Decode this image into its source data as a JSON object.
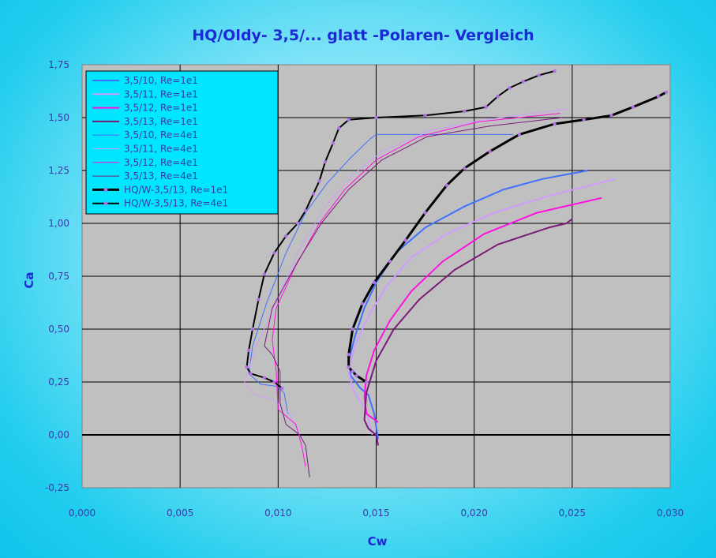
{
  "chart_data": {
    "type": "line",
    "title": "HQ/Oldy- 3,5/... glatt -Polaren- Vergleich",
    "xlabel": "Cw",
    "ylabel": "Ca",
    "xlim": [
      0.0,
      0.03
    ],
    "ylim": [
      -0.25,
      1.75
    ],
    "x_ticks": [
      "0,000",
      "0,005",
      "0,010",
      "0,015",
      "0,020",
      "0,025",
      "0,030"
    ],
    "x_tick_values": [
      0.0,
      0.005,
      0.01,
      0.015,
      0.02,
      0.025,
      0.03
    ],
    "y_ticks": [
      "1,75",
      "1,50",
      "1,25",
      "1,00",
      "0,75",
      "0,50",
      "0,25",
      "0,00",
      "-0,25"
    ],
    "y_tick_values": [
      1.75,
      1.5,
      1.25,
      1.0,
      0.75,
      0.5,
      0.25,
      0.0,
      -0.25
    ],
    "grid": true,
    "legend_position": "top-left",
    "colors": {
      "plot_bg": "#c0c0c0",
      "legend_bg": "#00e6ff",
      "grid": "#000000"
    },
    "series": [
      {
        "name": "3,5/10, Re=1e1",
        "color": "#4070ff",
        "width": 2,
        "marker": false,
        "points": [
          [
            0.0151,
            -0.02
          ],
          [
            0.0149,
            0.1
          ],
          [
            0.0146,
            0.19
          ],
          [
            0.0142,
            0.22
          ],
          [
            0.0137,
            0.28
          ],
          [
            0.0136,
            0.35
          ],
          [
            0.0139,
            0.46
          ],
          [
            0.0144,
            0.6
          ],
          [
            0.015,
            0.72
          ],
          [
            0.016,
            0.86
          ],
          [
            0.0175,
            0.98
          ],
          [
            0.0195,
            1.08
          ],
          [
            0.0215,
            1.16
          ],
          [
            0.0235,
            1.21
          ],
          [
            0.0258,
            1.25
          ]
        ]
      },
      {
        "name": "3,5/11, Re=1e1",
        "color": "#d09cff",
        "width": 2,
        "marker": false,
        "points": [
          [
            0.0148,
            0.0
          ],
          [
            0.0145,
            0.12
          ],
          [
            0.0141,
            0.17
          ],
          [
            0.0138,
            0.22
          ],
          [
            0.0136,
            0.3
          ],
          [
            0.0139,
            0.42
          ],
          [
            0.0146,
            0.56
          ],
          [
            0.0155,
            0.7
          ],
          [
            0.0168,
            0.84
          ],
          [
            0.0186,
            0.95
          ],
          [
            0.021,
            1.05
          ],
          [
            0.0238,
            1.13
          ],
          [
            0.0272,
            1.21
          ]
        ]
      },
      {
        "name": "3,5/12, Re=1e1",
        "color": "#ff10e0",
        "width": 2,
        "marker": false,
        "points": [
          [
            0.0151,
            0.06
          ],
          [
            0.0145,
            0.1
          ],
          [
            0.0144,
            0.18
          ],
          [
            0.0145,
            0.28
          ],
          [
            0.0149,
            0.4
          ],
          [
            0.0157,
            0.54
          ],
          [
            0.0168,
            0.68
          ],
          [
            0.0184,
            0.82
          ],
          [
            0.0205,
            0.95
          ],
          [
            0.0232,
            1.05
          ],
          [
            0.0265,
            1.12
          ]
        ]
      },
      {
        "name": "3,5/13, Re=1e1",
        "color": "#7a1a78",
        "width": 2,
        "marker": false,
        "points": [
          [
            0.0151,
            -0.05
          ],
          [
            0.015,
            0.0
          ],
          [
            0.0146,
            0.03
          ],
          [
            0.0144,
            0.07
          ],
          [
            0.0145,
            0.2
          ],
          [
            0.015,
            0.35
          ],
          [
            0.0159,
            0.5
          ],
          [
            0.0172,
            0.64
          ],
          [
            0.019,
            0.78
          ],
          [
            0.0212,
            0.9
          ],
          [
            0.0238,
            0.98
          ],
          [
            0.0247,
            1.0
          ],
          [
            0.025,
            1.02
          ]
        ]
      },
      {
        "name": "3,5/10, Re=4e1",
        "color": "#4070ff",
        "width": 1,
        "marker": false,
        "points": [
          [
            0.0105,
            0.1
          ],
          [
            0.0103,
            0.2
          ],
          [
            0.0099,
            0.23
          ],
          [
            0.0091,
            0.24
          ],
          [
            0.0085,
            0.29
          ],
          [
            0.0087,
            0.42
          ],
          [
            0.0094,
            0.62
          ],
          [
            0.0104,
            0.86
          ],
          [
            0.0114,
            1.05
          ],
          [
            0.0125,
            1.19
          ],
          [
            0.0137,
            1.31
          ],
          [
            0.0147,
            1.4
          ],
          [
            0.015,
            1.42
          ],
          [
            0.022,
            1.42
          ]
        ]
      },
      {
        "name": "3,5/11, Re=4e1",
        "color": "#d09cff",
        "width": 1,
        "marker": false,
        "points": [
          [
            0.0112,
            -0.02
          ],
          [
            0.0106,
            0.1
          ],
          [
            0.0097,
            0.17
          ],
          [
            0.0088,
            0.19
          ],
          [
            0.0083,
            0.25
          ],
          [
            0.0088,
            0.4
          ],
          [
            0.0099,
            0.63
          ],
          [
            0.0111,
            0.88
          ],
          [
            0.0124,
            1.08
          ],
          [
            0.0138,
            1.23
          ],
          [
            0.0153,
            1.34
          ],
          [
            0.0178,
            1.44
          ],
          [
            0.0205,
            1.49
          ],
          [
            0.0247,
            1.54
          ]
        ]
      },
      {
        "name": "3,5/12, Re=4e1",
        "color": "#ff10e0",
        "width": 1,
        "marker": false,
        "points": [
          [
            0.0114,
            -0.15
          ],
          [
            0.0112,
            -0.05
          ],
          [
            0.0109,
            0.05
          ],
          [
            0.01,
            0.12
          ],
          [
            0.0099,
            0.3
          ],
          [
            0.0097,
            0.45
          ],
          [
            0.0099,
            0.6
          ],
          [
            0.0109,
            0.8
          ],
          [
            0.0121,
            1.0
          ],
          [
            0.0134,
            1.16
          ],
          [
            0.015,
            1.3
          ],
          [
            0.0172,
            1.41
          ],
          [
            0.0202,
            1.48
          ],
          [
            0.0244,
            1.52
          ]
        ]
      },
      {
        "name": "3,5/13, Re=4e1",
        "color": "#7a1a78",
        "width": 1,
        "marker": false,
        "points": [
          [
            0.0116,
            -0.2
          ],
          [
            0.0114,
            -0.05
          ],
          [
            0.0111,
            0.0
          ],
          [
            0.0104,
            0.05
          ],
          [
            0.0101,
            0.15
          ],
          [
            0.0101,
            0.3
          ],
          [
            0.0097,
            0.38
          ],
          [
            0.0093,
            0.42
          ],
          [
            0.0097,
            0.6
          ],
          [
            0.011,
            0.82
          ],
          [
            0.0122,
            1.0
          ],
          [
            0.0136,
            1.16
          ],
          [
            0.0153,
            1.3
          ],
          [
            0.0176,
            1.41
          ],
          [
            0.0208,
            1.46
          ],
          [
            0.0245,
            1.5
          ]
        ]
      },
      {
        "name": "HQ/W-3,5/13, Re=1e1",
        "color": "#000000",
        "width": 3,
        "marker": true,
        "points": [
          [
            0.0145,
            0.25
          ],
          [
            0.014,
            0.28
          ],
          [
            0.0138,
            0.3
          ],
          [
            0.0136,
            0.32
          ],
          [
            0.0136,
            0.38
          ],
          [
            0.0138,
            0.5
          ],
          [
            0.0143,
            0.62
          ],
          [
            0.0149,
            0.72
          ],
          [
            0.0157,
            0.82
          ],
          [
            0.0165,
            0.92
          ],
          [
            0.0175,
            1.05
          ],
          [
            0.0186,
            1.18
          ],
          [
            0.0195,
            1.26
          ],
          [
            0.0208,
            1.34
          ],
          [
            0.0223,
            1.42
          ],
          [
            0.0241,
            1.47
          ],
          [
            0.0256,
            1.49
          ],
          [
            0.027,
            1.51
          ],
          [
            0.0281,
            1.55
          ],
          [
            0.0294,
            1.6
          ],
          [
            0.0298,
            1.62
          ]
        ]
      },
      {
        "name": "HQ/W-3,5/13, Re=4e1",
        "color": "#000000",
        "width": 2,
        "marker": true,
        "points": [
          [
            0.0102,
            0.22
          ],
          [
            0.0098,
            0.25
          ],
          [
            0.0093,
            0.27
          ],
          [
            0.0086,
            0.29
          ],
          [
            0.0084,
            0.32
          ],
          [
            0.0085,
            0.4
          ],
          [
            0.0087,
            0.5
          ],
          [
            0.009,
            0.64
          ],
          [
            0.0093,
            0.76
          ],
          [
            0.0098,
            0.86
          ],
          [
            0.0104,
            0.94
          ],
          [
            0.011,
            1.0
          ],
          [
            0.0114,
            1.06
          ],
          [
            0.0118,
            1.14
          ],
          [
            0.0121,
            1.2
          ],
          [
            0.0124,
            1.29
          ],
          [
            0.0128,
            1.38
          ],
          [
            0.0131,
            1.45
          ],
          [
            0.0136,
            1.49
          ],
          [
            0.015,
            1.5
          ],
          [
            0.0175,
            1.51
          ],
          [
            0.0195,
            1.53
          ],
          [
            0.0206,
            1.55
          ],
          [
            0.0212,
            1.6
          ],
          [
            0.0218,
            1.64
          ],
          [
            0.0225,
            1.67
          ],
          [
            0.0233,
            1.7
          ],
          [
            0.0241,
            1.72
          ]
        ]
      }
    ]
  }
}
